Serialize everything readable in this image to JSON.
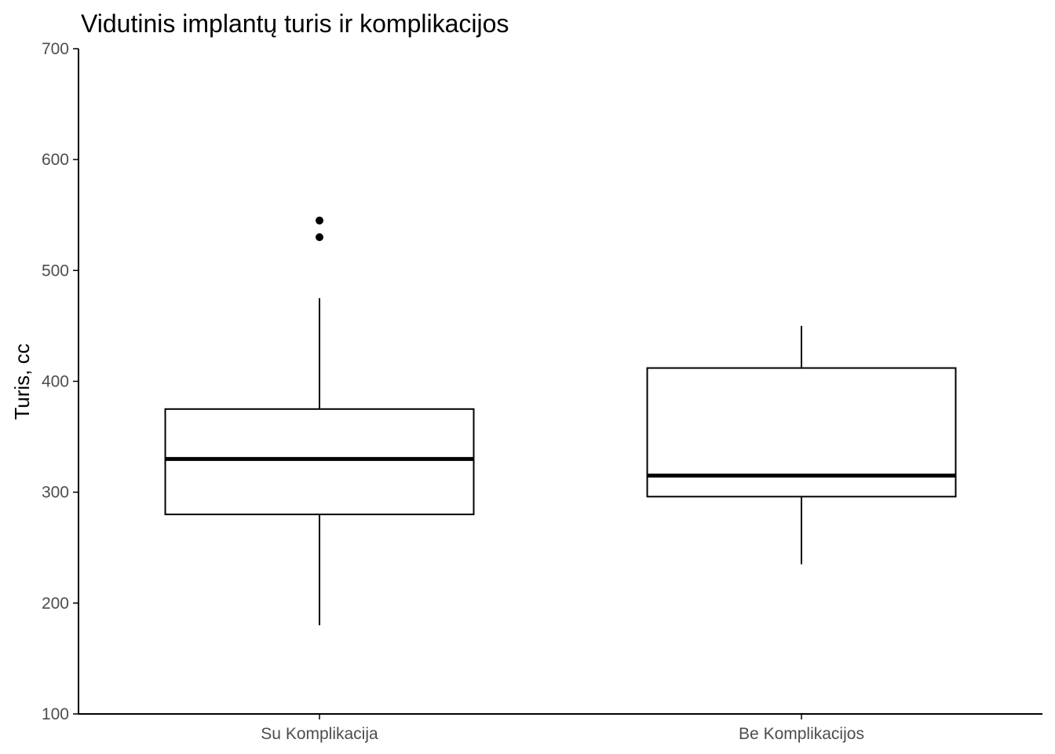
{
  "chart_data": {
    "type": "box",
    "title": "Vidutinis implantų turis ir komplikacijos",
    "xlabel": "",
    "ylabel": "Turis, cc",
    "ylim": [
      100,
      700
    ],
    "yticks": [
      100,
      200,
      300,
      400,
      500,
      600,
      700
    ],
    "grid": false,
    "legend": "none",
    "categories": [
      "Su Komplikacija",
      "Be Komplikacijos"
    ],
    "boxes": [
      {
        "category": "Su Komplikacija",
        "whisker_low": 180,
        "q1": 280,
        "median": 330,
        "q3": 375,
        "whisker_high": 475,
        "outliers": [
          530,
          545
        ]
      },
      {
        "category": "Be Komplikacijos",
        "whisker_low": 235,
        "q1": 296,
        "median": 315,
        "q3": 412,
        "whisker_high": 450,
        "outliers": []
      }
    ],
    "colors": {
      "box_fill": "#ffffff",
      "box_line": "#000000",
      "axis": "#000000",
      "tick_label": "#4d4d4d"
    }
  }
}
